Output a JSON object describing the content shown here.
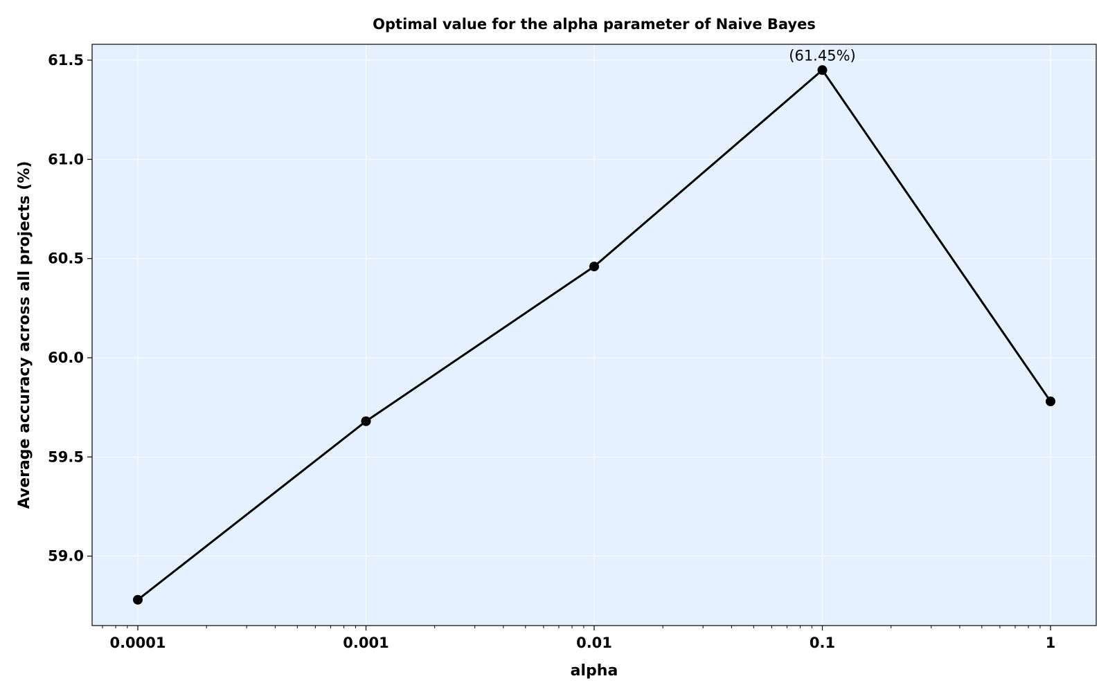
{
  "chart_data": {
    "type": "line",
    "title": "Optimal value for the alpha parameter of Naive Bayes",
    "xlabel": "alpha",
    "ylabel": "Average accuracy across all projects (%)",
    "x_scale": "log",
    "x": [
      0.0001,
      0.001,
      0.01,
      0.1,
      1
    ],
    "x_tick_labels": [
      "0.0001",
      "0.001",
      "0.01",
      "0.1",
      "1"
    ],
    "series": [
      {
        "values": [
          58.78,
          59.68,
          60.46,
          61.45,
          59.78
        ]
      }
    ],
    "ylim": [
      58.65,
      61.58
    ],
    "y_ticks": [
      59.0,
      59.5,
      60.0,
      60.5,
      61.0,
      61.5
    ],
    "y_tick_labels": [
      "59.0",
      "59.5",
      "60.0",
      "60.5",
      "61.0",
      "61.5"
    ],
    "annotations": [
      {
        "x": 0.1,
        "y": 61.45,
        "text": "(61.45%)"
      }
    ],
    "grid": true,
    "colors": {
      "background": "#e5f1fe",
      "line": "#000000",
      "grid": "#ffffff"
    }
  }
}
